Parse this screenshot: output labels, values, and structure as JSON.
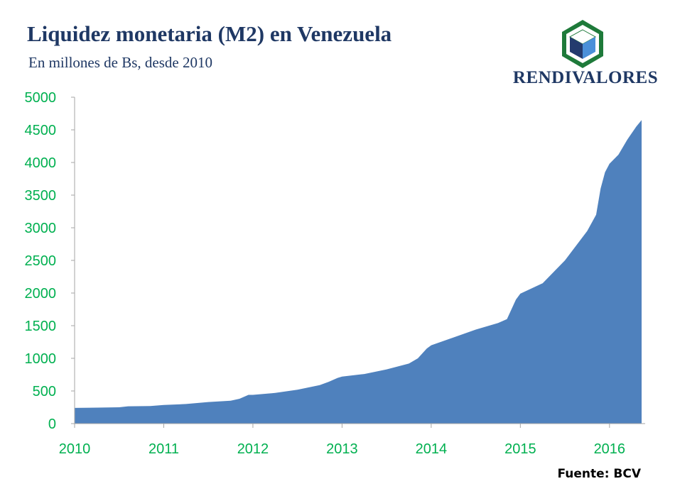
{
  "header": {
    "title": "Liquidez monetaria (M2) en Venezuela",
    "subtitle": "En millones de Bs, desde 2010"
  },
  "logo": {
    "text": "RENDIVALORES",
    "icon": "cube-hexagon-icon"
  },
  "source": "Fuente: BCV",
  "colors": {
    "area": "#4f81bd",
    "ticks": "#00b050",
    "title": "#1f3864",
    "axis": "#a6a6a6"
  },
  "chart_data": {
    "type": "area",
    "title": "Liquidez monetaria (M2) en Venezuela",
    "subtitle": "En millones de Bs, desde 2010",
    "xlabel": "",
    "ylabel": "",
    "ylim": [
      0,
      5000
    ],
    "xlim": [
      2010,
      2016.4
    ],
    "y_ticks": [
      "0",
      "500",
      "1000",
      "1500",
      "2000",
      "2500",
      "3000",
      "3500",
      "4000",
      "4500",
      "5000"
    ],
    "x_ticks": [
      "2010",
      "2011",
      "2012",
      "2013",
      "2014",
      "2015",
      "2016"
    ],
    "grid": false,
    "legend": "none",
    "series": [
      {
        "x": [
          2010.0,
          2010.25,
          2010.5,
          2010.6,
          2010.85,
          2011.0,
          2011.25,
          2011.5,
          2011.75,
          2011.85,
          2011.95,
          2012.0,
          2012.25,
          2012.5,
          2012.75,
          2012.85,
          2012.95,
          2013.0,
          2013.25,
          2013.5,
          2013.75,
          2013.85,
          2013.95,
          2014.0,
          2014.25,
          2014.5,
          2014.75,
          2014.85,
          2014.95,
          2015.0,
          2015.25,
          2015.5,
          2015.75,
          2015.85,
          2015.9,
          2015.95,
          2016.0,
          2016.1,
          2016.2,
          2016.3,
          2016.36
        ],
        "values": [
          240,
          245,
          250,
          265,
          270,
          285,
          300,
          330,
          350,
          380,
          440,
          440,
          470,
          520,
          590,
          640,
          700,
          720,
          760,
          830,
          920,
          1000,
          1150,
          1200,
          1320,
          1440,
          1540,
          1600,
          1900,
          1990,
          2150,
          2500,
          2950,
          3200,
          3600,
          3850,
          3980,
          4120,
          4350,
          4550,
          4650
        ]
      }
    ]
  }
}
